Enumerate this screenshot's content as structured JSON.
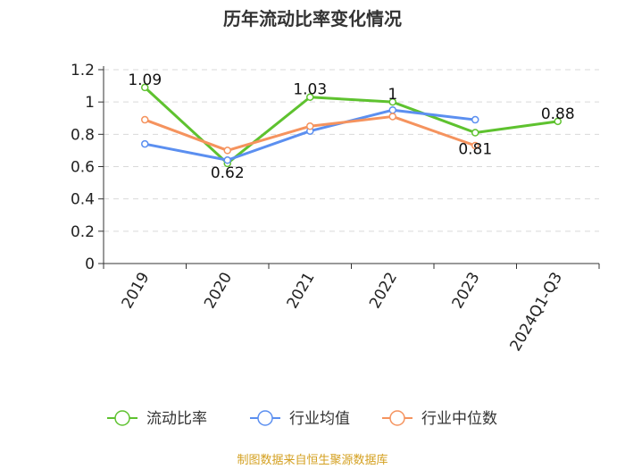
{
  "chart_data": {
    "type": "line",
    "title": "历年流动比率变化情况",
    "categories": [
      "2019",
      "2020",
      "2021",
      "2022",
      "2023",
      "2024Q1-Q3"
    ],
    "ylim": [
      0,
      1.2
    ],
    "yticks": [
      "0",
      "0.2",
      "0.4",
      "0.6",
      "0.8",
      "1",
      "1.2"
    ],
    "grid": true,
    "legend_position": "bottom",
    "series": [
      {
        "name": "流动比率",
        "color": "#5ec22f",
        "values": [
          1.09,
          0.62,
          1.03,
          1.0,
          0.81,
          0.88
        ],
        "labels": [
          "1.09",
          "0.62",
          "1.03",
          "1",
          "0.81",
          "0.88"
        ]
      },
      {
        "name": "行业均值",
        "color": "#5b8ff0",
        "values": [
          0.74,
          0.64,
          0.82,
          0.95,
          0.89,
          null
        ]
      },
      {
        "name": "行业中位数",
        "color": "#f5935e",
        "values": [
          0.89,
          0.7,
          0.85,
          0.91,
          0.73,
          null
        ]
      }
    ],
    "source": "制图数据来自恒生聚源数据库",
    "source_color": "#d4a020"
  }
}
